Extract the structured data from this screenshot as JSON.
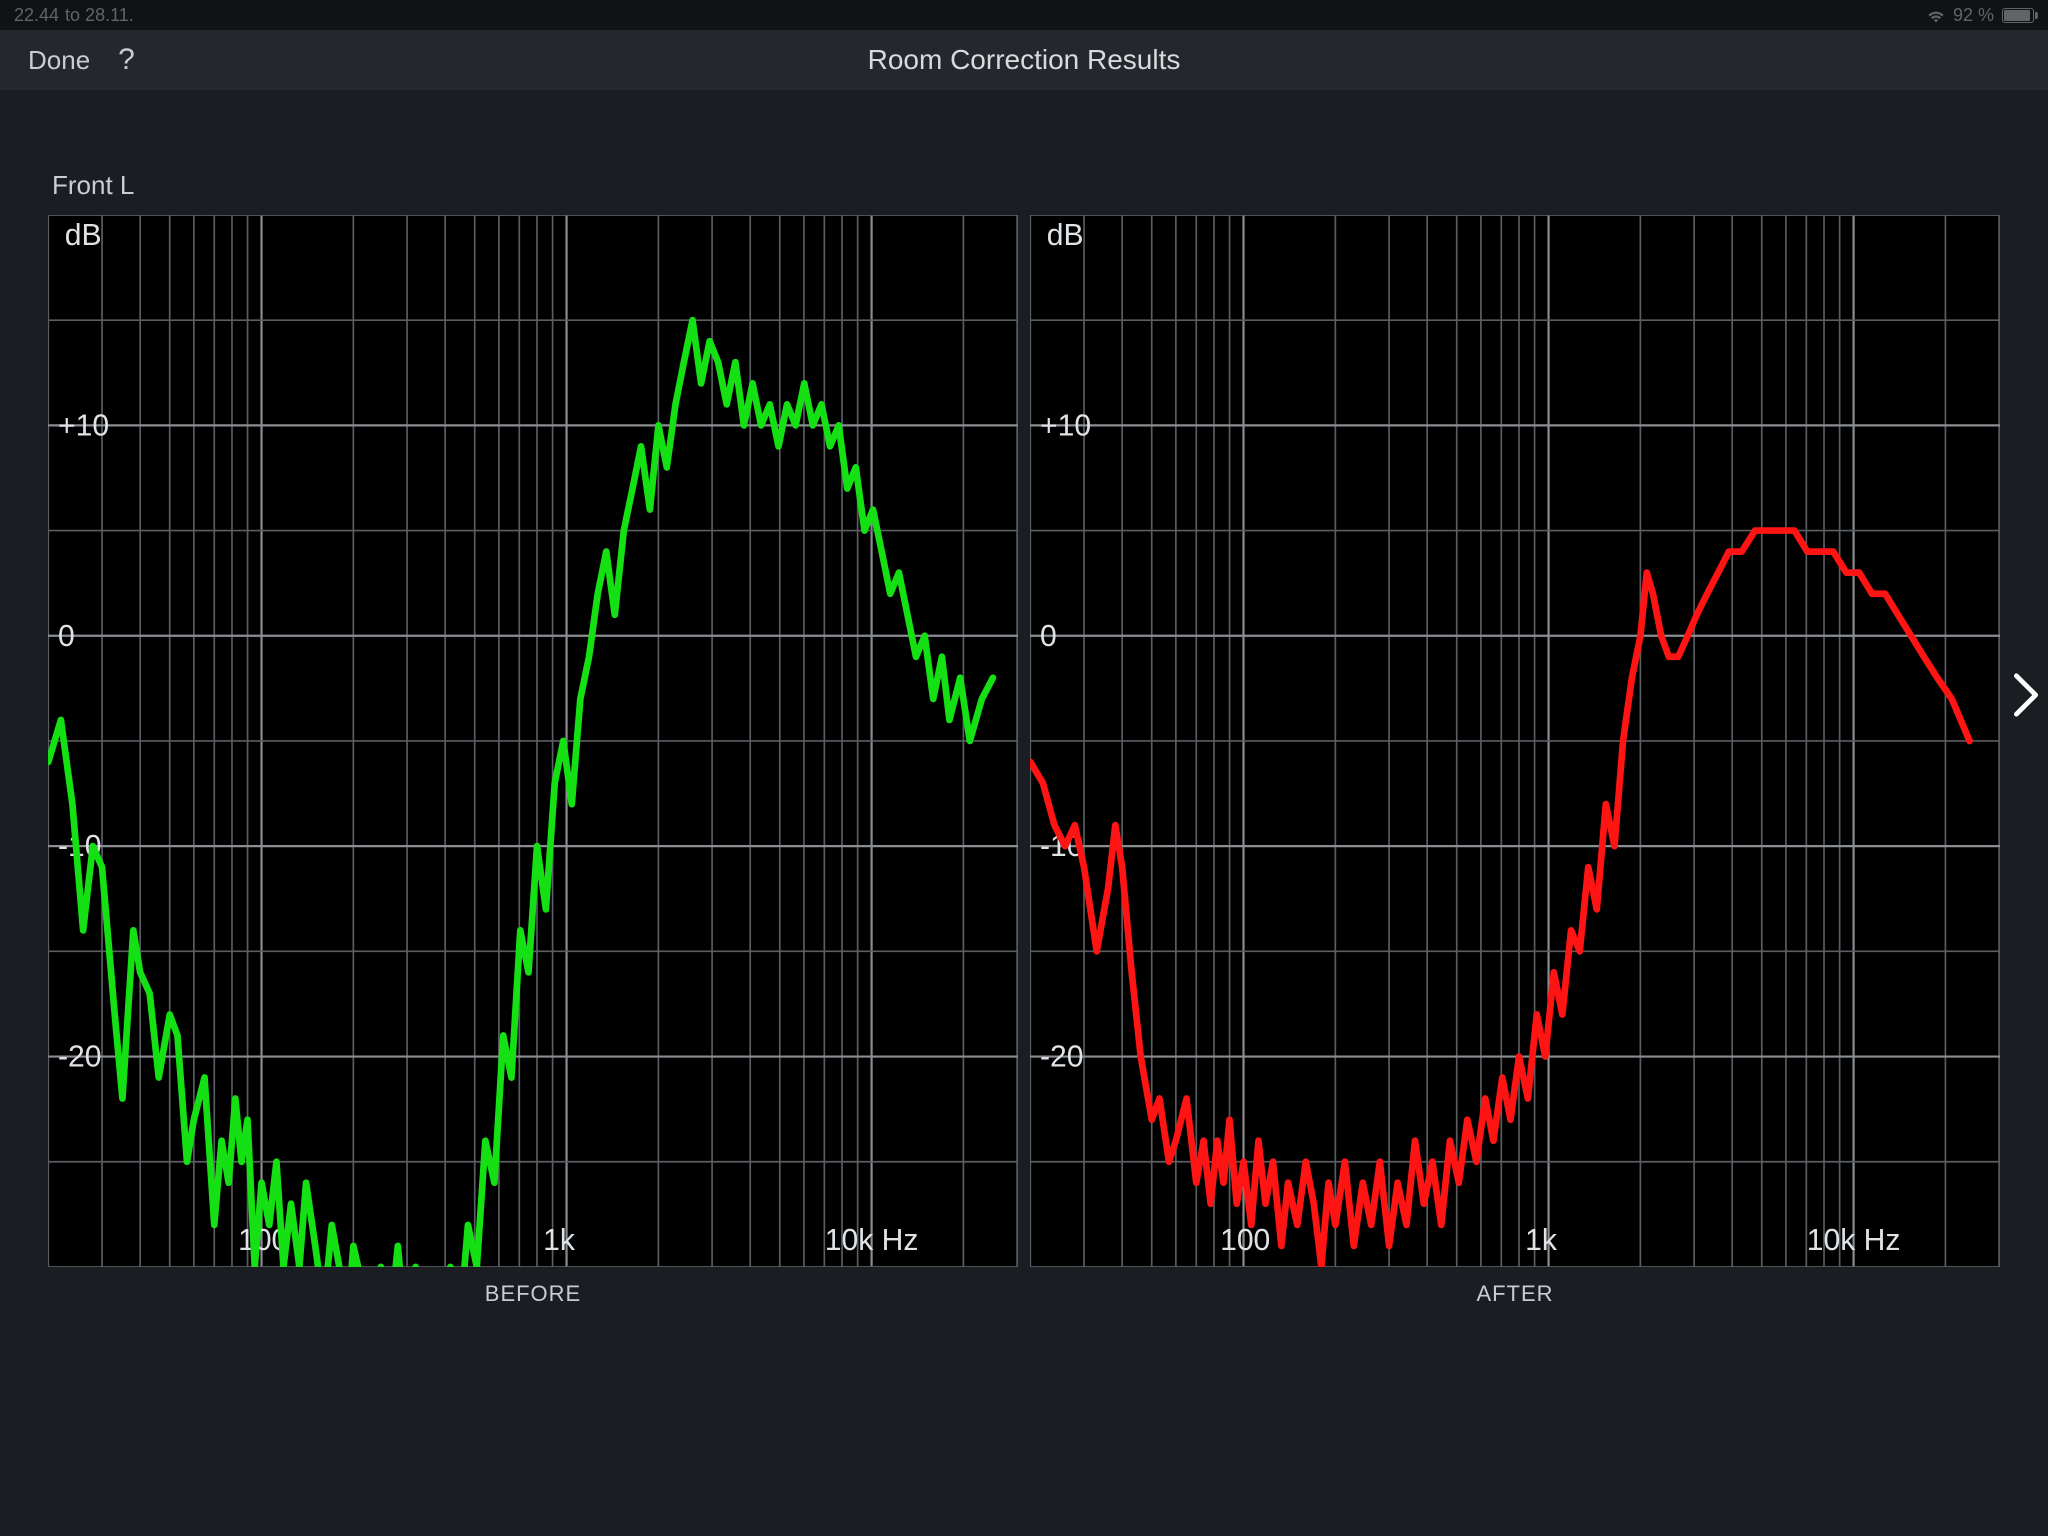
{
  "status": {
    "time": "22.44",
    "date": "to 28.11.",
    "battery_pct": "92 %"
  },
  "nav": {
    "done_label": "Done",
    "help_label": "?",
    "title": "Room Correction Results"
  },
  "channel_label": "Front L",
  "charts": {
    "y_unit": "dB",
    "x_unit": "Hz",
    "y_ticks": [
      {
        "v": 10,
        "label": "+10"
      },
      {
        "v": 0,
        "label": "0"
      },
      {
        "v": -10,
        "label": "-10"
      },
      {
        "v": -20,
        "label": "-20"
      }
    ],
    "y_range": [
      -30,
      20
    ],
    "x_ticks": [
      {
        "v": 100,
        "label": "100"
      },
      {
        "v": 1000,
        "label": "1k"
      },
      {
        "v": 10000,
        "label": "10k Hz"
      }
    ],
    "x_range_log10": [
      1.3,
      4.48
    ],
    "grid_color": "#5a5e62",
    "background_color": "#000000",
    "before": {
      "caption": "BEFORE",
      "line_color": "#14e014",
      "line_width": 4,
      "data": [
        [
          20,
          -6
        ],
        [
          22,
          -4
        ],
        [
          24,
          -8
        ],
        [
          26,
          -14
        ],
        [
          28,
          -10
        ],
        [
          30,
          -11
        ],
        [
          33,
          -18
        ],
        [
          35,
          -22
        ],
        [
          38,
          -14
        ],
        [
          40,
          -16
        ],
        [
          43,
          -17
        ],
        [
          46,
          -21
        ],
        [
          50,
          -18
        ],
        [
          53,
          -19
        ],
        [
          57,
          -25
        ],
        [
          60,
          -23
        ],
        [
          65,
          -21
        ],
        [
          70,
          -28
        ],
        [
          74,
          -24
        ],
        [
          78,
          -26
        ],
        [
          82,
          -22
        ],
        [
          86,
          -25
        ],
        [
          90,
          -23
        ],
        [
          95,
          -30
        ],
        [
          100,
          -26
        ],
        [
          106,
          -28
        ],
        [
          112,
          -25
        ],
        [
          118,
          -30
        ],
        [
          125,
          -27
        ],
        [
          133,
          -30
        ],
        [
          140,
          -26
        ],
        [
          150,
          -29
        ],
        [
          160,
          -32
        ],
        [
          170,
          -28
        ],
        [
          180,
          -30
        ],
        [
          190,
          -33
        ],
        [
          200,
          -29
        ],
        [
          215,
          -31
        ],
        [
          230,
          -35
        ],
        [
          246,
          -30
        ],
        [
          262,
          -33
        ],
        [
          280,
          -29
        ],
        [
          300,
          -34
        ],
        [
          320,
          -30
        ],
        [
          342,
          -35
        ],
        [
          365,
          -31
        ],
        [
          390,
          -36
        ],
        [
          416,
          -30
        ],
        [
          445,
          -33
        ],
        [
          475,
          -28
        ],
        [
          508,
          -30
        ],
        [
          542,
          -24
        ],
        [
          580,
          -26
        ],
        [
          620,
          -19
        ],
        [
          660,
          -21
        ],
        [
          705,
          -14
        ],
        [
          750,
          -16
        ],
        [
          800,
          -10
        ],
        [
          855,
          -13
        ],
        [
          915,
          -7
        ],
        [
          975,
          -5
        ],
        [
          1040,
          -8
        ],
        [
          1110,
          -3
        ],
        [
          1185,
          -1
        ],
        [
          1265,
          2
        ],
        [
          1350,
          4
        ],
        [
          1440,
          1
        ],
        [
          1540,
          5
        ],
        [
          1645,
          7
        ],
        [
          1755,
          9
        ],
        [
          1875,
          6
        ],
        [
          2000,
          10
        ],
        [
          2130,
          8
        ],
        [
          2275,
          11
        ],
        [
          2425,
          13
        ],
        [
          2590,
          15
        ],
        [
          2760,
          12
        ],
        [
          2945,
          14
        ],
        [
          3140,
          13
        ],
        [
          3350,
          11
        ],
        [
          3575,
          13
        ],
        [
          3815,
          10
        ],
        [
          4075,
          12
        ],
        [
          4345,
          10
        ],
        [
          4640,
          11
        ],
        [
          4950,
          9
        ],
        [
          5280,
          11
        ],
        [
          5635,
          10
        ],
        [
          6015,
          12
        ],
        [
          6415,
          10
        ],
        [
          6850,
          11
        ],
        [
          7310,
          9
        ],
        [
          7800,
          10
        ],
        [
          8320,
          7
        ],
        [
          8880,
          8
        ],
        [
          9475,
          5
        ],
        [
          10110,
          6
        ],
        [
          10790,
          4
        ],
        [
          11515,
          2
        ],
        [
          12285,
          3
        ],
        [
          13110,
          1
        ],
        [
          13990,
          -1
        ],
        [
          14925,
          0
        ],
        [
          15925,
          -3
        ],
        [
          17000,
          -1
        ],
        [
          18000,
          -4
        ],
        [
          19500,
          -2
        ],
        [
          21000,
          -5
        ],
        [
          23000,
          -3
        ],
        [
          25000,
          -2
        ]
      ]
    },
    "after": {
      "caption": "AFTER",
      "line_color": "#ff1414",
      "line_width": 4,
      "data": [
        [
          20,
          -6
        ],
        [
          22,
          -7
        ],
        [
          24,
          -9
        ],
        [
          26,
          -10
        ],
        [
          28,
          -9
        ],
        [
          30,
          -11
        ],
        [
          33,
          -15
        ],
        [
          36,
          -12
        ],
        [
          38,
          -9
        ],
        [
          40,
          -11
        ],
        [
          43,
          -16
        ],
        [
          46,
          -20
        ],
        [
          50,
          -23
        ],
        [
          53,
          -22
        ],
        [
          57,
          -25
        ],
        [
          60,
          -24
        ],
        [
          65,
          -22
        ],
        [
          70,
          -26
        ],
        [
          74,
          -24
        ],
        [
          78,
          -27
        ],
        [
          82,
          -24
        ],
        [
          86,
          -26
        ],
        [
          90,
          -23
        ],
        [
          95,
          -27
        ],
        [
          100,
          -25
        ],
        [
          106,
          -28
        ],
        [
          112,
          -24
        ],
        [
          118,
          -27
        ],
        [
          125,
          -25
        ],
        [
          133,
          -29
        ],
        [
          140,
          -26
        ],
        [
          150,
          -28
        ],
        [
          160,
          -25
        ],
        [
          170,
          -27
        ],
        [
          180,
          -30
        ],
        [
          190,
          -26
        ],
        [
          200,
          -28
        ],
        [
          215,
          -25
        ],
        [
          230,
          -29
        ],
        [
          246,
          -26
        ],
        [
          262,
          -28
        ],
        [
          280,
          -25
        ],
        [
          300,
          -29
        ],
        [
          320,
          -26
        ],
        [
          342,
          -28
        ],
        [
          365,
          -24
        ],
        [
          390,
          -27
        ],
        [
          416,
          -25
        ],
        [
          445,
          -28
        ],
        [
          475,
          -24
        ],
        [
          508,
          -26
        ],
        [
          542,
          -23
        ],
        [
          580,
          -25
        ],
        [
          620,
          -22
        ],
        [
          660,
          -24
        ],
        [
          705,
          -21
        ],
        [
          750,
          -23
        ],
        [
          800,
          -20
        ],
        [
          855,
          -22
        ],
        [
          915,
          -18
        ],
        [
          975,
          -20
        ],
        [
          1040,
          -16
        ],
        [
          1110,
          -18
        ],
        [
          1185,
          -14
        ],
        [
          1265,
          -15
        ],
        [
          1350,
          -11
        ],
        [
          1440,
          -13
        ],
        [
          1540,
          -8
        ],
        [
          1645,
          -10
        ],
        [
          1755,
          -5
        ],
        [
          1875,
          -2
        ],
        [
          2000,
          0
        ],
        [
          2100,
          3
        ],
        [
          2200,
          2
        ],
        [
          2340,
          0
        ],
        [
          2480,
          -1
        ],
        [
          2660,
          -1
        ],
        [
          2860,
          0
        ],
        [
          3060,
          1
        ],
        [
          3310,
          2
        ],
        [
          3600,
          3
        ],
        [
          3900,
          4
        ],
        [
          4300,
          4
        ],
        [
          4750,
          5
        ],
        [
          5250,
          5
        ],
        [
          5800,
          5
        ],
        [
          6400,
          5
        ],
        [
          7050,
          4
        ],
        [
          7780,
          4
        ],
        [
          8580,
          4
        ],
        [
          9460,
          3
        ],
        [
          10430,
          3
        ],
        [
          11500,
          2
        ],
        [
          12680,
          2
        ],
        [
          13980,
          1
        ],
        [
          15420,
          0
        ],
        [
          17000,
          -1
        ],
        [
          18800,
          -2
        ],
        [
          21000,
          -3
        ],
        [
          24000,
          -5
        ]
      ]
    }
  }
}
